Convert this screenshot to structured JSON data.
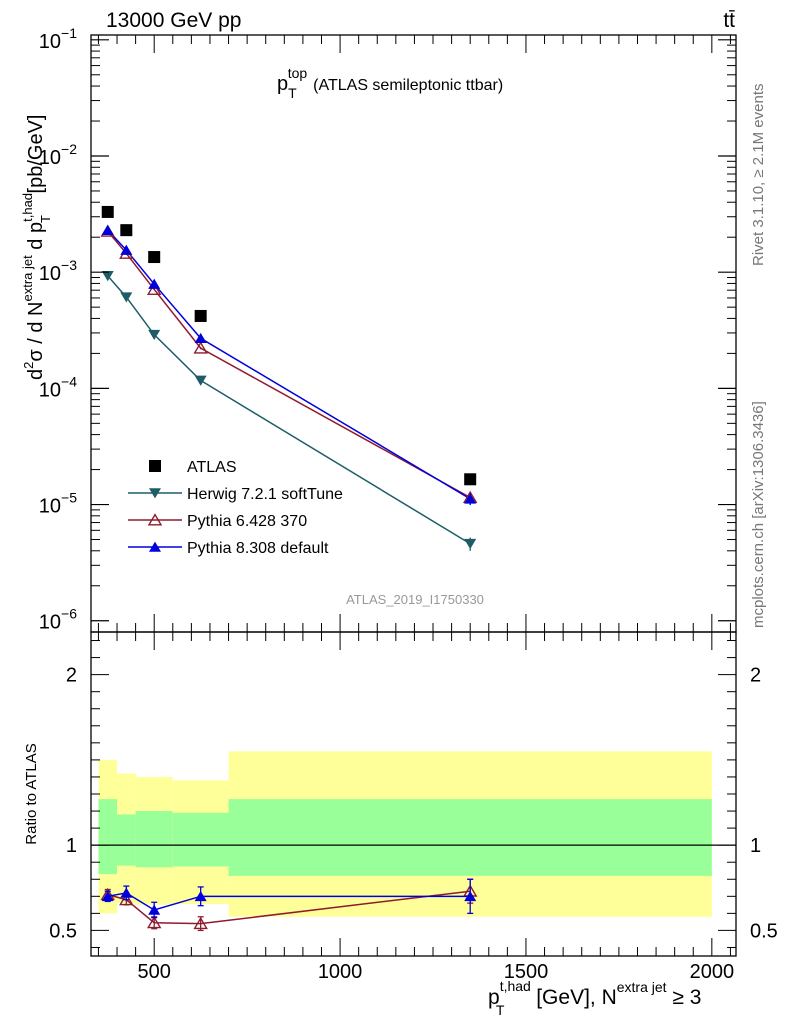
{
  "header": {
    "left": "13000 GeV pp",
    "right": "tt̄"
  },
  "side_text": {
    "upper": "Rivet 3.1.10, ≥ 2.1M events",
    "lower": "mcplots.cern.ch [arXiv:1306.3436]"
  },
  "chart_data": [
    {
      "type": "line",
      "panel": "main",
      "title_main": "p",
      "title_sub": "T",
      "title_sup": "top",
      "title_rest": "(ATLAS semileptonic ttbar)",
      "watermark": "ATLAS_2019_I1750330",
      "y_scale": "log",
      "ylim": [
        8e-07,
        0.11
      ],
      "xlim": [
        330,
        2065
      ],
      "ylabel_parts": [
        "d",
        "2",
        "σ /  d N",
        "extra jet",
        " d p",
        "t,had",
        "T",
        " [pb/GeV]"
      ],
      "y_ticks": [
        {
          "value": 1e-06,
          "base": "10",
          "exp": "−6"
        },
        {
          "value": 1e-05,
          "base": "10",
          "exp": "−5"
        },
        {
          "value": 0.0001,
          "base": "10",
          "exp": "−4"
        },
        {
          "value": 0.001,
          "base": "10",
          "exp": "−3"
        },
        {
          "value": 0.01,
          "base": "10",
          "exp": "−2"
        },
        {
          "value": 0.1,
          "base": "10",
          "exp": "−1"
        }
      ],
      "legend_position": "bottom-left",
      "series": [
        {
          "name": "ATLAS",
          "marker": "square",
          "color": "#000000",
          "x": [
            375,
            425,
            500,
            625,
            1350
          ],
          "y": [
            0.0033,
            0.0023,
            0.00135,
            0.00042,
            1.65e-05
          ]
        },
        {
          "name": "Herwig 7.2.1 softTune",
          "marker": "triangle-down",
          "color": "#1e5d68",
          "x": [
            375,
            425,
            500,
            625,
            1350
          ],
          "y": [
            0.00093,
            0.00061,
            0.00029,
            0.000117,
            4.6e-06
          ],
          "err": [
            1e-05,
            1e-05,
            4e-06,
            2e-06,
            6e-07
          ]
        },
        {
          "name": "Pythia 6.428 370",
          "marker": "triangle-up-open",
          "color": "#8e1b2e",
          "x": [
            375,
            425,
            500,
            625,
            1350
          ],
          "y": [
            0.00225,
            0.00145,
            0.00071,
            0.000222,
            1.15e-05
          ],
          "err": [
            2e-05,
            2e-05,
            1e-05,
            5e-06,
            1e-06
          ]
        },
        {
          "name": "Pythia 8.308 default",
          "marker": "triangle-up",
          "color": "#0000dd",
          "x": [
            375,
            425,
            500,
            625,
            1350
          ],
          "y": [
            0.0023,
            0.00155,
            0.00079,
            0.00027,
            1.12e-05
          ],
          "err": [
            2e-05,
            2e-05,
            1e-05,
            6e-06,
            1.3e-06
          ]
        }
      ]
    },
    {
      "type": "line",
      "panel": "ratio",
      "ylabel": "Ratio to ATLAS",
      "ylim": [
        0.35,
        2.25
      ],
      "xlim": [
        330,
        2065
      ],
      "y_ticks": [
        0.5,
        1,
        2
      ],
      "x_ticks": [
        500,
        1000,
        1500,
        2000
      ],
      "xlabel_parts": [
        "p",
        "t,had",
        "T",
        " [GeV], N",
        "extra jet",
        " ≥ 3"
      ],
      "bands": {
        "edges": [
          350,
          400,
          450,
          550,
          700,
          2000
        ],
        "yellow_lo": [
          0.6,
          0.66,
          0.65,
          0.655,
          0.58
        ],
        "yellow_hi": [
          1.5,
          1.42,
          1.4,
          1.38,
          1.55
        ],
        "green_lo": [
          0.83,
          0.88,
          0.87,
          0.875,
          0.82
        ],
        "green_hi": [
          1.27,
          1.18,
          1.2,
          1.19,
          1.27
        ],
        "yellow_color": "#ffff99",
        "green_color": "#99ff99"
      },
      "series": [
        {
          "name": "Pythia 6.428 370",
          "marker": "triangle-up-open",
          "color": "#8e1b2e",
          "x": [
            375,
            425,
            500,
            625,
            1350
          ],
          "y": [
            0.71,
            0.68,
            0.545,
            0.54,
            0.73
          ],
          "err": [
            0.03,
            0.03,
            0.035,
            0.04,
            0.07
          ]
        },
        {
          "name": "Pythia 8.308 default",
          "marker": "triangle-up",
          "color": "#0000dd",
          "x": [
            375,
            425,
            500,
            625,
            1350
          ],
          "y": [
            0.7,
            0.72,
            0.62,
            0.7,
            0.7
          ],
          "err": [
            0.03,
            0.04,
            0.045,
            0.055,
            0.1
          ]
        }
      ]
    }
  ]
}
